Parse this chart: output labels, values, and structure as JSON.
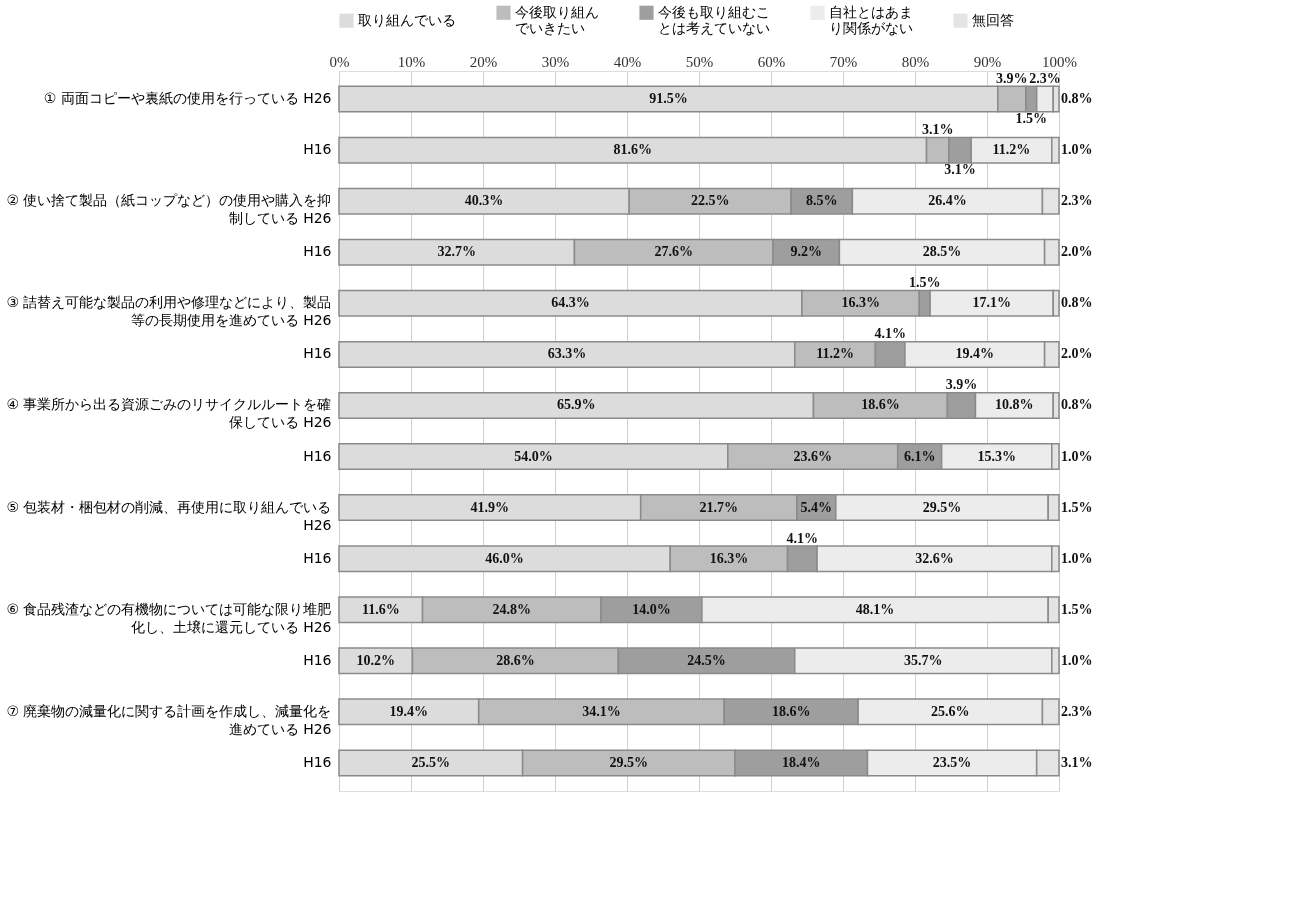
{
  "chart_data": {
    "type": "bar",
    "orientation": "horizontal",
    "stacked": true,
    "categories": [
      "① 両面コピーや裏紙の使用を行っている H26",
      "H16",
      "② 使い捨て製品（紙コップなど）の使用や購入を抑制している H26",
      "H16",
      "③ 詰替え可能な製品の利用や修理などにより、製品等の長期使用を進めている H26",
      "H16",
      "④ 事業所から出る資源ごみのリサイクルルートを確保している H26",
      "H16",
      "⑤ 包装材・梱包材の削減、再使用に取り組んでいる H26",
      "H16",
      "⑥ 食品残渣などの有機物については可能な限り堆肥化し、土壌に還元している H26",
      "H16",
      "⑦ 廃棄物の減量化に関する計画を作成し、減量化を進めている H26",
      "H16"
    ],
    "series": [
      {
        "name": "取り組んでいる",
        "color": "#dcdcdc",
        "values": [
          91.5,
          81.6,
          40.3,
          32.7,
          64.3,
          63.3,
          65.9,
          54.0,
          41.9,
          46.0,
          11.6,
          10.2,
          19.4,
          25.5
        ],
        "value_labels": [
          "91.5%",
          "81.6%",
          "40.3%",
          "32.7%",
          "64.3%",
          "63.3%",
          "65.9%",
          "54.0%",
          "41.9%",
          "46.0%",
          "11.6%",
          "10.2%",
          "19.4%",
          "25.5%"
        ]
      },
      {
        "name": "今後取り組んでいきたい",
        "color": "#bdbdbd",
        "values": [
          3.9,
          3.1,
          22.5,
          27.6,
          16.3,
          11.2,
          18.6,
          23.6,
          21.7,
          16.3,
          24.8,
          28.6,
          34.1,
          29.5
        ],
        "value_labels": [
          "3.9%",
          "3.1%",
          "22.5%",
          "27.6%",
          "16.3%",
          "11.2%",
          "18.6%",
          "23.6%",
          "21.7%",
          "16.3%",
          "24.8%",
          "28.6%",
          "34.1%",
          "29.5%"
        ]
      },
      {
        "name": "今後も取り組むことは考えていない",
        "color": "#9e9e9e",
        "values": [
          1.5,
          3.1,
          8.5,
          9.2,
          1.5,
          4.1,
          3.9,
          6.1,
          5.4,
          4.1,
          14.0,
          24.5,
          18.6,
          18.4
        ],
        "value_labels": [
          "1.5%",
          "3.1%",
          "8.5%",
          "9.2%",
          "1.5%",
          "4.1%",
          "3.9%",
          "6.1%",
          "5.4%",
          "4.1%",
          "14.0%",
          "24.5%",
          "18.6%",
          "18.4%"
        ]
      },
      {
        "name": "自社とはあまり関係がない",
        "color": "#ececec",
        "values": [
          2.3,
          11.2,
          26.4,
          28.5,
          17.1,
          19.4,
          10.8,
          15.3,
          29.5,
          32.6,
          48.1,
          35.7,
          25.6,
          23.5
        ],
        "value_labels": [
          "2.3%",
          "11.2%",
          "26.4%",
          "28.5%",
          "17.1%",
          "19.4%",
          "10.8%",
          "15.3%",
          "29.5%",
          "32.6%",
          "48.1%",
          "35.7%",
          "25.6%",
          "23.5%"
        ]
      },
      {
        "name": "無回答",
        "color": "#e4e4e4",
        "values": [
          0.8,
          1.0,
          2.3,
          2.0,
          0.8,
          2.0,
          0.8,
          1.0,
          1.5,
          1.0,
          1.5,
          1.0,
          2.3,
          3.1
        ],
        "value_labels": [
          "0.8%",
          "1.0%",
          "2.3%",
          "2.0%",
          "0.8%",
          "2.0%",
          "0.8%",
          "1.0%",
          "1.5%",
          "1.0%",
          "1.5%",
          "1.0%",
          "2.3%",
          "3.1%"
        ]
      }
    ],
    "xlim": [
      0,
      100
    ],
    "xticks": [
      {
        "value": 0,
        "label": "0%"
      },
      {
        "value": 10,
        "label": "10%"
      },
      {
        "value": 20,
        "label": "20%"
      },
      {
        "value": 30,
        "label": "30%"
      },
      {
        "value": 40,
        "label": "40%"
      },
      {
        "value": 50,
        "label": "50%"
      },
      {
        "value": 60,
        "label": "60%"
      },
      {
        "value": 70,
        "label": "70%"
      },
      {
        "value": 80,
        "label": "80%"
      },
      {
        "value": 90,
        "label": "90%"
      },
      {
        "value": 100,
        "label": "100%"
      }
    ],
    "grid": "x",
    "legend": "top"
  }
}
